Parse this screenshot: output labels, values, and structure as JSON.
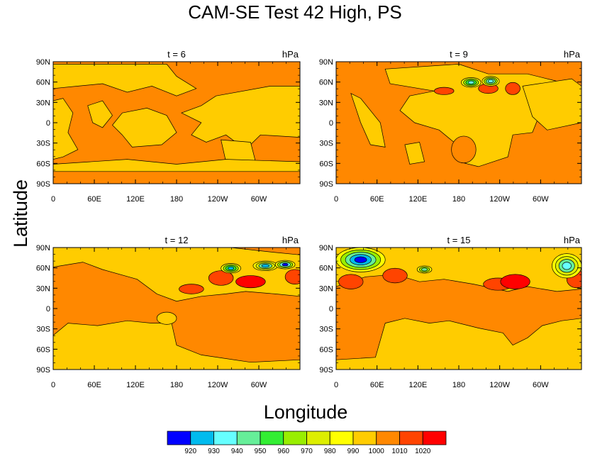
{
  "chart_data": {
    "type": "contour map",
    "title": "CAM-SE Test 42 High, PS",
    "xlabel": "Longitude",
    "ylabel": "Latitude",
    "x_ticks": [
      "0",
      "60E",
      "120E",
      "180",
      "120W",
      "60W"
    ],
    "y_ticks": [
      "90N",
      "60N",
      "30N",
      "0",
      "30S",
      "60S",
      "90S"
    ],
    "units": "hPa",
    "panels": [
      {
        "label": "t = 6"
      },
      {
        "label": "t = 9"
      },
      {
        "label": "t = 12"
      },
      {
        "label": "t = 15"
      }
    ],
    "colorbar": {
      "levels": [
        "920",
        "930",
        "940",
        "950",
        "960",
        "970",
        "980",
        "990",
        "1000",
        "1010",
        "1020"
      ],
      "colors": [
        "#0000ff",
        "#00bbee",
        "#66ffff",
        "#66ee99",
        "#33ee33",
        "#99ee00",
        "#ddee00",
        "#ffff00",
        "#ffcc00",
        "#ff8800",
        "#ff4400",
        "#ff0000"
      ]
    }
  }
}
